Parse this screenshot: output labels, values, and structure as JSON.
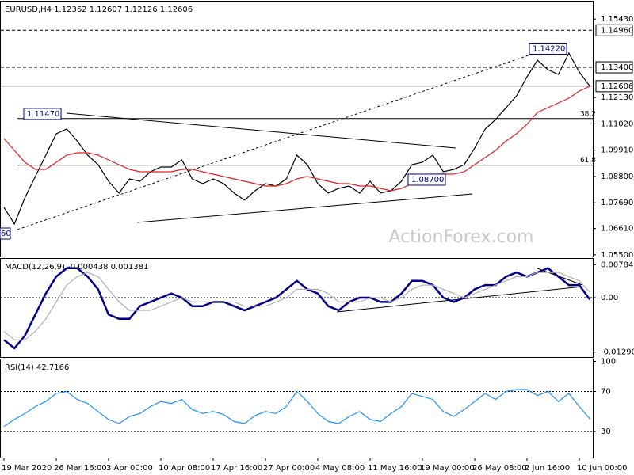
{
  "chart_data": [
    {
      "type": "line",
      "title": "EURUSD,H4  1.12362 1.12607 1.12126 1.12606",
      "ylim": [
        1.0543,
        1.1617
      ],
      "yticks": [
        {
          "value": 1.1543,
          "label": "1.15430"
        },
        {
          "value": 1.1213,
          "label": "1.12130"
        },
        {
          "value": 1.1102,
          "label": "1.11020"
        },
        {
          "value": 1.0991,
          "label": "1.09910"
        },
        {
          "value": 1.088,
          "label": "1.08800"
        },
        {
          "value": 1.0769,
          "label": "1.07690"
        },
        {
          "value": 1.0661,
          "label": "1.06610"
        },
        {
          "value": 1.055,
          "label": "1.05500"
        }
      ],
      "series": [
        {
          "color": "#000000",
          "values": [
            1.075,
            1.068,
            1.079,
            1.088,
            1.097,
            1.106,
            1.108,
            1.103,
            1.097,
            1.093,
            1.086,
            1.081,
            1.087,
            1.086,
            1.09,
            1.092,
            1.092,
            1.095,
            1.087,
            1.085,
            1.087,
            1.085,
            1.081,
            1.078,
            1.082,
            1.085,
            1.084,
            1.087,
            1.097,
            1.093,
            1.085,
            1.081,
            1.083,
            1.084,
            1.081,
            1.086,
            1.081,
            1.082,
            1.086,
            1.093,
            1.094,
            1.097,
            1.09,
            1.091,
            1.093,
            1.1,
            1.108,
            1.112,
            1.117,
            1.122,
            1.13,
            1.137,
            1.133,
            1.131,
            1.14,
            1.132,
            1.1261
          ]
        },
        {
          "color": "#e02020",
          "values": [
            1.104,
            1.099,
            1.094,
            1.091,
            1.091,
            1.094,
            1.097,
            1.098,
            1.098,
            1.097,
            1.095,
            1.093,
            1.091,
            1.09,
            1.09,
            1.09,
            1.09,
            1.091,
            1.091,
            1.09,
            1.089,
            1.088,
            1.087,
            1.086,
            1.085,
            1.084,
            1.084,
            1.085,
            1.087,
            1.088,
            1.087,
            1.086,
            1.085,
            1.085,
            1.084,
            1.084,
            1.083,
            1.082,
            1.083,
            1.085,
            1.087,
            1.089,
            1.089,
            1.089,
            1.09,
            1.093,
            1.096,
            1.099,
            1.103,
            1.106,
            1.11,
            1.115,
            1.117,
            1.119,
            1.121,
            1.124,
            1.126
          ]
        }
      ],
      "levels": [
        {
          "value": 1.1496,
          "label": "1.14960",
          "style": "dashed"
        },
        {
          "value": 1.134,
          "label": "1.13400",
          "style": "dashed"
        },
        {
          "value": 1.12606,
          "label": "1.12606",
          "style": "solid"
        }
      ],
      "fib_levels": [
        {
          "value": 1.1124,
          "label": "38.2"
        },
        {
          "value": 1.0928,
          "label": "61.8"
        }
      ],
      "annotations": [
        {
          "value": 1.1147,
          "label": "1.11470"
        },
        {
          "value": 1.1422,
          "label": "1.14220"
        },
        {
          "value": 1.087,
          "label": "1.08700"
        }
      ],
      "edge_label": "60",
      "watermark": "ActionForex.com"
    },
    {
      "type": "line",
      "title": "MACD(12,26,9) -0.000438 0.001381",
      "ylim": [
        -0.01408,
        0.00921
      ],
      "yticks": [
        0.007841,
        {
          "value": 0,
          "label": "0.00"
        },
        -0.012906
      ],
      "levels": [
        0
      ],
      "series": [
        {
          "color": "#00008b",
          "values": [
            -0.01,
            -0.012,
            -0.009,
            -0.004,
            0.001,
            0.005,
            0.007,
            0.007,
            0.005,
            0.002,
            -0.004,
            -0.005,
            -0.005,
            -0.002,
            -0.001,
            0,
            0.001,
            0,
            -0.002,
            -0.002,
            -0.001,
            -0.001,
            -0.002,
            -0.003,
            -0.002,
            -0.001,
            0,
            0.002,
            0.004,
            0.002,
            0.001,
            -0.002,
            -0.003,
            -0.001,
            0,
            0,
            -0.001,
            -0.001,
            0.001,
            0.004,
            0.004,
            0.003,
            0,
            -0.001,
            0,
            0.002,
            0.003,
            0.003,
            0.005,
            0.006,
            0.005,
            0.006,
            0.007,
            0.005,
            0.003,
            0.003,
            -0.000438
          ]
        },
        {
          "color": "#b0b0b0",
          "values": [
            -0.008,
            -0.01,
            -0.01,
            -0.008,
            -0.005,
            -0.001,
            0.003,
            0.005,
            0.006,
            0.005,
            0.002,
            -0.001,
            -0.003,
            -0.003,
            -0.003,
            -0.002,
            -0.001,
            0,
            -0.001,
            -0.001,
            -0.001,
            -0.001,
            -0.001,
            -0.002,
            -0.002,
            -0.002,
            -0.001,
            0,
            0.002,
            0.002,
            0.002,
            0.001,
            -0.001,
            -0.001,
            -0.001,
            0,
            0,
            -0.001,
            0,
            0.002,
            0.003,
            0.003,
            0.002,
            0.001,
            0,
            0.001,
            0.002,
            0.003,
            0.004,
            0.005,
            0.005,
            0.006,
            0.006,
            0.006,
            0.005,
            0.004,
            0.001381
          ]
        }
      ]
    },
    {
      "type": "line",
      "title": "RSI(14) 42.7166",
      "ylim": [
        4,
        102
      ],
      "yticks": [
        100,
        70,
        30
      ],
      "levels": [
        30,
        70
      ],
      "series": [
        {
          "color": "#1e90ff",
          "values": [
            35,
            42,
            48,
            55,
            60,
            68,
            70,
            62,
            58,
            50,
            42,
            38,
            45,
            48,
            55,
            60,
            58,
            62,
            52,
            48,
            50,
            47,
            40,
            38,
            46,
            50,
            48,
            55,
            70,
            60,
            48,
            40,
            38,
            45,
            50,
            42,
            40,
            48,
            55,
            68,
            65,
            62,
            50,
            45,
            52,
            60,
            68,
            62,
            70,
            72,
            72,
            66,
            70,
            60,
            68,
            55,
            42.7166
          ]
        }
      ],
      "categories": [
        "19 Mar 2020",
        null,
        null,
        null,
        null,
        "26 Mar 16:00",
        null,
        null,
        null,
        null,
        "3 Apr 00:00",
        null,
        null,
        null,
        null,
        "10 Apr 08:00",
        null,
        null,
        null,
        null,
        "17 Apr 16:00",
        null,
        null,
        null,
        null,
        "27 Apr 00:00",
        null,
        null,
        null,
        null,
        "4 May 08:00",
        null,
        null,
        null,
        null,
        "11 May 16:00",
        null,
        null,
        null,
        null,
        "19 May 00:00",
        null,
        null,
        null,
        null,
        "26 May 08:00",
        null,
        null,
        null,
        null,
        "2 Jun 16:00",
        null,
        null,
        null,
        null,
        "10 Jun 00:00",
        null
      ]
    }
  ]
}
